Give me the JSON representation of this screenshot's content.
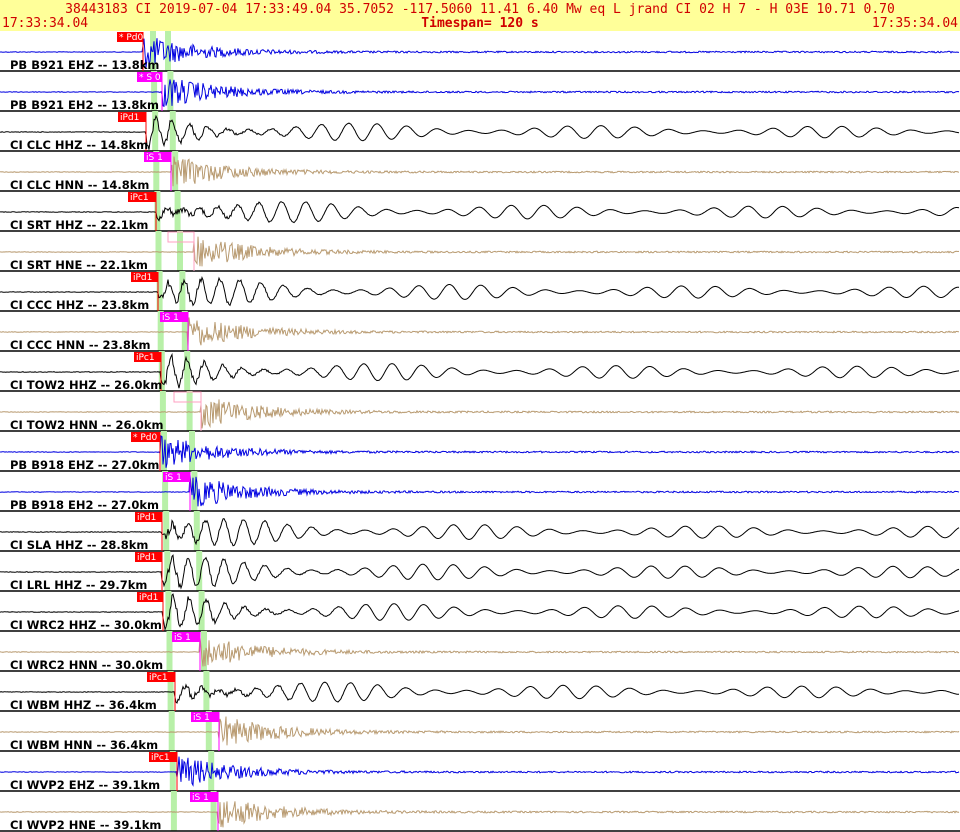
{
  "header": {
    "title": "38443183 CI 2019-07-04 17:33:49.04   35.7052 -117.5060  11.41  6.40 Mw  eq  L jrand    CI 02  H  7  -  H 03E  10.71  0.70",
    "start": "17:33:34.04",
    "timespan": "Timespan= 120 s",
    "end": "17:35:34.04"
  },
  "traces": [
    {
      "label": "PB B921 EHZ -- 13.8km",
      "pick": "* Pd0",
      "color": "#0000e0"
    },
    {
      "label": "PB B921 EH2 -- 13.8km",
      "pick": "* S 0",
      "color": "#0000e0"
    },
    {
      "label": "CI CLC HHZ -- 14.8km",
      "pick": "iPd1",
      "color": "#000000"
    },
    {
      "label": "CI CLC HNN -- 14.8km",
      "pick": "iS 1",
      "color": "#b89a70"
    },
    {
      "label": "CI SRT HHZ -- 22.1km",
      "pick": "iPc1",
      "color": "#000000"
    },
    {
      "label": "CI SRT HNE -- 22.1km",
      "color": "#b89a70"
    },
    {
      "label": "CI CCC HHZ -- 23.8km",
      "pick": "iPd1",
      "color": "#000000"
    },
    {
      "label": "CI CCC HNN -- 23.8km",
      "pick": "iS 1",
      "color": "#b89a70"
    },
    {
      "label": "CI TOW2 HHZ -- 26.0km",
      "pick": "iPc1",
      "color": "#000000"
    },
    {
      "label": "CI TOW2 HNN -- 26.0km",
      "color": "#b89a70"
    },
    {
      "label": "PB B918 EHZ -- 27.0km",
      "pick": "* Pd0",
      "color": "#0000e0"
    },
    {
      "label": "PB B918 EH2 -- 27.0km",
      "pick": "iS 1",
      "color": "#0000e0"
    },
    {
      "label": "CI SLA HHZ -- 28.8km",
      "pick": "iPd1",
      "color": "#000000"
    },
    {
      "label": "CI LRL HHZ -- 29.7km",
      "pick": "iPd1",
      "color": "#000000"
    },
    {
      "label": "CI WRC2 HHZ -- 30.0km",
      "pick": "iPd1",
      "color": "#000000"
    },
    {
      "label": "CI WRC2 HNN -- 30.0km",
      "pick": "iS 1",
      "color": "#b89a70"
    },
    {
      "label": "CI WBM HHZ -- 36.4km",
      "pick": "iPc1",
      "color": "#000000"
    },
    {
      "label": "CI WBM HNN -- 36.4km",
      "pick": "iS 1",
      "color": "#b89a70"
    },
    {
      "label": "CI WVP2 EHZ -- 39.1km",
      "pick": "iPc1",
      "color": "#0000e0"
    },
    {
      "label": "CI WVP2 HNE -- 39.1km",
      "pick": "iS 1",
      "color": "#b89a70"
    }
  ]
}
